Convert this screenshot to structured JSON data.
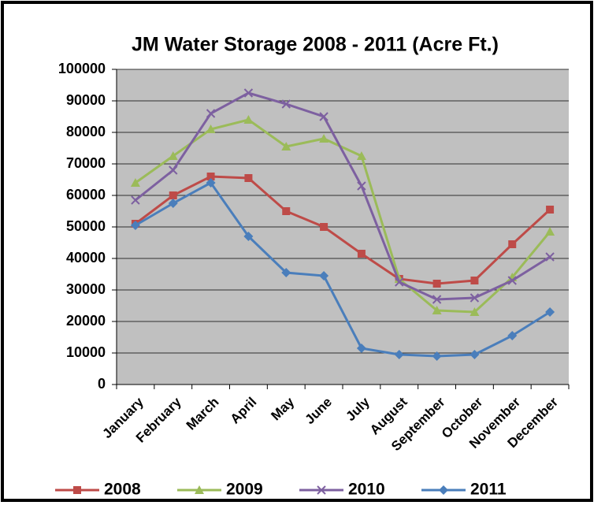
{
  "chart_data": {
    "type": "line",
    "title": "JM Water Storage 2008 - 2011 (Acre Ft.)",
    "categories": [
      "January",
      "February",
      "March",
      "April",
      "May",
      "June",
      "July",
      "August",
      "September",
      "October",
      "November",
      "December"
    ],
    "series": [
      {
        "name": "2008",
        "color": "#be4b48",
        "marker": "square",
        "values": [
          51000,
          60000,
          66000,
          65500,
          55000,
          50000,
          41500,
          33500,
          32000,
          33000,
          44500,
          55500
        ]
      },
      {
        "name": "2009",
        "color": "#9bbb59",
        "marker": "triangle",
        "values": [
          64000,
          72500,
          81000,
          84000,
          75500,
          78000,
          72500,
          33500,
          23500,
          23000,
          34000,
          48500
        ]
      },
      {
        "name": "2010",
        "color": "#7d60a0",
        "marker": "x",
        "values": [
          58500,
          68000,
          86000,
          92500,
          89000,
          85000,
          63000,
          32500,
          27000,
          27500,
          33000,
          40500
        ]
      },
      {
        "name": "2011",
        "color": "#4a7ebb",
        "marker": "diamond",
        "values": [
          50500,
          57500,
          64000,
          47000,
          35500,
          34500,
          11500,
          9500,
          9000,
          9500,
          15500,
          23000
        ]
      }
    ],
    "ylim": [
      0,
      100000
    ],
    "yticks": [
      0,
      10000,
      20000,
      30000,
      40000,
      50000,
      60000,
      70000,
      80000,
      90000,
      100000
    ],
    "grid": true,
    "legend": "bottom"
  }
}
